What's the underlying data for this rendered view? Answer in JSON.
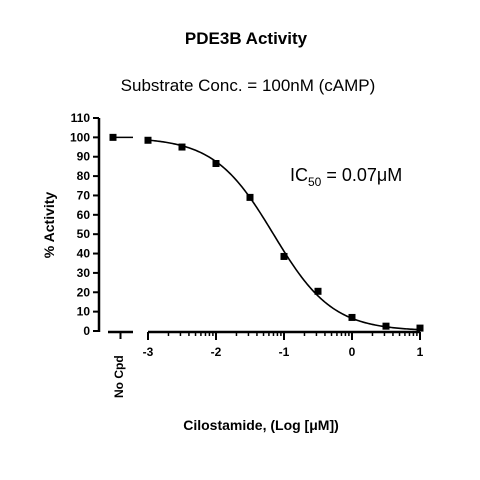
{
  "chart_data": {
    "type": "scatter",
    "title": "PDE3B Activity",
    "subtitle": "Substrate Conc. = 100nM (cAMP)",
    "xlabel": "Cilostamide, (Log [μM])",
    "ylabel": "% Activity",
    "xlim": [
      -3,
      1
    ],
    "ylim": [
      0,
      110
    ],
    "x_ticks": [
      -3,
      -2,
      -1,
      0,
      1
    ],
    "y_ticks": [
      0,
      10,
      20,
      30,
      40,
      50,
      60,
      70,
      80,
      90,
      100,
      110
    ],
    "x_tick_labels": [
      "-3",
      "-2",
      "-1",
      "0",
      "1"
    ],
    "y_tick_labels": [
      "0",
      "10",
      "20",
      "30",
      "40",
      "50",
      "60",
      "70",
      "80",
      "90",
      "100",
      "110"
    ],
    "x_scale": "log10 concentration (μM)",
    "control": {
      "label": "No Cpd",
      "value": 100
    },
    "points": {
      "x": [
        -3,
        -2.5,
        -2,
        -1.5,
        -1,
        -0.5,
        0,
        0.5,
        1
      ],
      "y": [
        98.5,
        95,
        86.5,
        69,
        38.5,
        20.5,
        7,
        2.5,
        1.5
      ]
    },
    "fit": {
      "model": "sigmoidal dose-response",
      "top": 100,
      "bottom": 0,
      "log_ic50": -1.155,
      "hill_slope": 1
    },
    "annotation": {
      "prefix": "IC",
      "subscript": "50",
      "suffix": " = 0.07μM"
    },
    "grid": false,
    "legend": "none"
  }
}
